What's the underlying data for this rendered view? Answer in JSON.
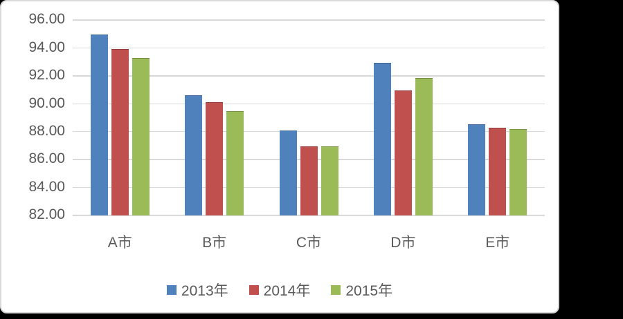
{
  "page": {
    "background": "#000000"
  },
  "panel": {
    "background": "#FFFFFF",
    "border_color": "#D9D9D9"
  },
  "chart_data": {
    "type": "bar",
    "title": "",
    "xlabel": "",
    "ylabel": "",
    "categories": [
      "A市",
      "B市",
      "C市",
      "D市",
      "E市"
    ],
    "series": [
      {
        "name": "2013年",
        "color": "#4F81BD",
        "edge_color": "#3C6497",
        "values": [
          94.95,
          90.55,
          88.05,
          92.9,
          88.5
        ]
      },
      {
        "name": "2014年",
        "color": "#C0504D",
        "edge_color": "#943C39",
        "values": [
          93.9,
          90.1,
          86.9,
          90.9,
          88.25
        ]
      },
      {
        "name": "2015年",
        "color": "#9BBB59",
        "edge_color": "#75903F",
        "values": [
          93.25,
          89.45,
          86.9,
          91.8,
          88.15
        ]
      }
    ],
    "ylim": [
      82,
      96
    ],
    "ytick_step": 2,
    "ytick_labels": [
      "82.00",
      "84.00",
      "86.00",
      "88.00",
      "90.00",
      "92.00",
      "94.00",
      "96.00"
    ],
    "grid": true,
    "grid_color": "#D9D9D9",
    "text_color": "#595959",
    "legend_position": "bottom"
  }
}
